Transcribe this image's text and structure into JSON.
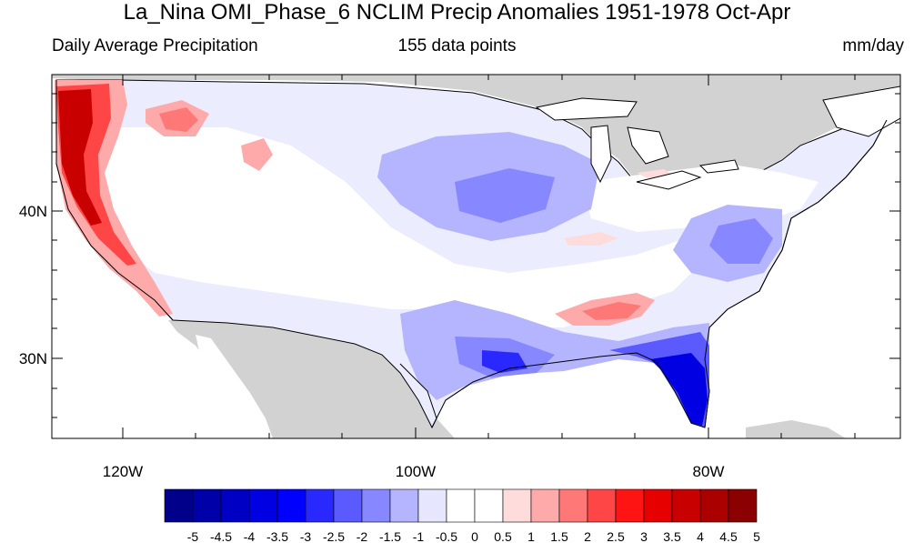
{
  "header": {
    "title": "La_Nina OMI_Phase_6 NCLIM Precip Anomalies 1951-1978 Oct-Apr",
    "left": "Daily Average Precipitation",
    "center": "155 data points",
    "right": "mm/day"
  },
  "axes": {
    "lat_labels": [
      "40N",
      "30N"
    ],
    "lon_labels": [
      "120W",
      "100W",
      "80W"
    ]
  },
  "colorbar": {
    "labels": [
      "-5",
      "-4.5",
      "-4",
      "-3.5",
      "-3",
      "-2.5",
      "-2",
      "-1.5",
      "-1",
      "-0.5",
      "0",
      "0.5",
      "1",
      "1.5",
      "2",
      "2.5",
      "3",
      "3.5",
      "4",
      "4.5",
      "5"
    ],
    "colors": [
      "#00008b",
      "#0000a8",
      "#0000c5",
      "#0000e2",
      "#0000ff",
      "#2828ff",
      "#5a5aff",
      "#8787ff",
      "#b4b4ff",
      "#e6e6ff",
      "#ffffff",
      "#ffffff",
      "#ffdcdc",
      "#ffaaaa",
      "#ff7878",
      "#ff4646",
      "#ff1414",
      "#e60000",
      "#c80000",
      "#aa0000",
      "#8b0000"
    ]
  },
  "colors": {
    "land_outside": "#d2d2d2",
    "ocean": "#ffffff",
    "coast": "#000000"
  }
}
